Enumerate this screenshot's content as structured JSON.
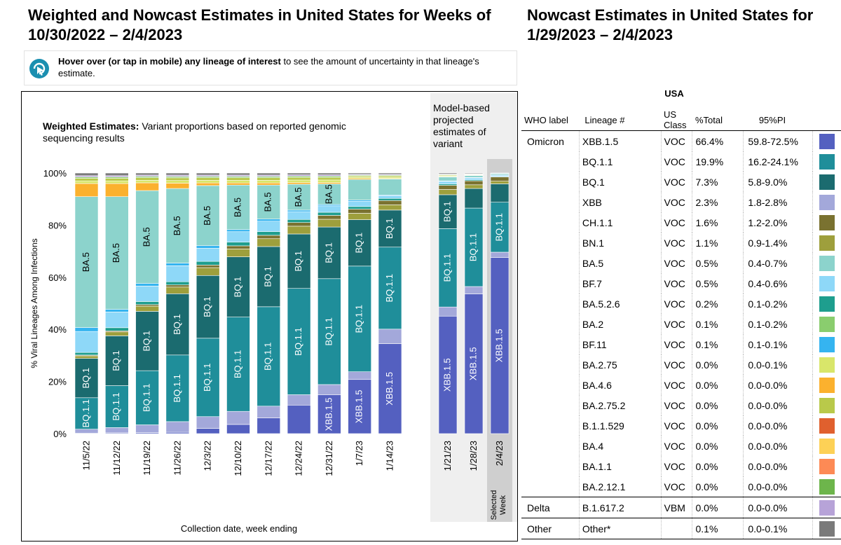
{
  "left_title": "Weighted and Nowcast Estimates in United States for Weeks of 10/30/2022 – 2/4/2023",
  "right_title": "Nowcast Estimates in United States for 1/29/2023 – 2/4/2023",
  "hover": {
    "bold": "Hover over (or tap in mobile) any lineage of interest",
    "rest": " to see the amount of uncertainty in that lineage's estimate."
  },
  "weighted_label_bold": "Weighted Estimates:",
  "weighted_label_rest": " Variant proportions based on reported genomic sequencing results",
  "nowcast_label": [
    "Model-based",
    "projected",
    "estimates of",
    "variant"
  ],
  "selected_week_label": [
    "Selected",
    "Week"
  ],
  "colors": {
    "XBB.1.5": "#5460C0",
    "BQ.1.1": "#1F8E9A",
    "BQ.1": "#1B6B6F",
    "XBB": "#A3A8DA",
    "CH.1.1": "#7A7230",
    "BN.1": "#9E9F3C",
    "BA.5": "#8CD3CC",
    "BF.7": "#8ED8F8",
    "BA.5.2.6": "#1E9E8E",
    "BA.2": "#8ACD6E",
    "BF.11": "#35B4F0",
    "BA.2.75": "#D9E66A",
    "BA.4.6": "#FBB12E",
    "BA.2.75.2": "#B9C94A",
    "B.1.1.529": "#E0602E",
    "BA.4": "#FDD156",
    "BA.1.1": "#FD8A55",
    "BA.2.12.1": "#6DB54B",
    "B.1.617.2": "#B7A3D8",
    "Other*": "#7A7A7A"
  },
  "chart_data": {
    "type": "bar",
    "stacked": true,
    "title": "Weighted and Nowcast Estimates in United States for Weeks of 10/30/2022 – 2/4/2023",
    "xlabel": "Collection date, week ending",
    "ylabel": "% Viral Lineages Among Infections",
    "ylim": [
      0,
      100
    ],
    "yticks": [
      "0%",
      "20%",
      "40%",
      "60%",
      "80%",
      "100%"
    ],
    "categories": [
      "11/5/22",
      "11/12/22",
      "11/19/22",
      "11/26/22",
      "12/3/22",
      "12/10/22",
      "12/17/22",
      "12/24/22",
      "12/31/22",
      "1/7/23",
      "1/14/23",
      "1/21/23",
      "1/28/23",
      "2/4/23"
    ],
    "weighted_count": 11,
    "selected_week": "2/4/23",
    "series": [
      {
        "name": "XBB.1.5",
        "values": [
          0.2,
          0.3,
          0.4,
          0.5,
          2,
          3.5,
          6,
          11,
          15,
          21,
          34,
          45,
          57,
          67
        ]
      },
      {
        "name": "XBB",
        "values": [
          1.5,
          2,
          3,
          4,
          4.5,
          5,
          4.5,
          4,
          4,
          3,
          5.5,
          3.5,
          3,
          2
        ]
      },
      {
        "name": "BQ.1.1",
        "values": [
          12,
          16,
          21,
          25,
          30,
          36,
          38,
          41,
          41,
          41,
          31,
          30,
          32,
          19
        ]
      },
      {
        "name": "BQ.1",
        "values": [
          15,
          19,
          23,
          23,
          24,
          23,
          23,
          21,
          20,
          18,
          14,
          13,
          8,
          7
        ]
      },
      {
        "name": "BN.1",
        "values": [
          1,
          1.5,
          2,
          2.5,
          3,
          3,
          3,
          3,
          3,
          2.5,
          2,
          2,
          1.5,
          1
        ]
      },
      {
        "name": "CH.1.1",
        "values": [
          0.3,
          0.4,
          0.6,
          0.8,
          1,
          1.2,
          1.3,
          1.4,
          1.5,
          1.6,
          1.6,
          1.6,
          1.6,
          1.6
        ]
      },
      {
        "name": "BA.5.2.6",
        "values": [
          1,
          1.2,
          1.2,
          1.2,
          1.4,
          1.4,
          1.4,
          1.2,
          1.2,
          1,
          0.8,
          0.5,
          0.4,
          0.2
        ]
      },
      {
        "name": "BF.7",
        "values": [
          8,
          6,
          6,
          6,
          5,
          4,
          4,
          3,
          2.5,
          2,
          1,
          1,
          0.8,
          0.5
        ]
      },
      {
        "name": "BF.11",
        "values": [
          1.5,
          1,
          1,
          1,
          1,
          0.8,
          0.8,
          0.6,
          0.5,
          0.5,
          0.3,
          0.2,
          0.2,
          0.1
        ]
      },
      {
        "name": "BA.5",
        "values": [
          50,
          43,
          36,
          28,
          23,
          17,
          13,
          10,
          8,
          8,
          6,
          1.5,
          0.8,
          0.5
        ]
      },
      {
        "name": "BA.4.6",
        "values": [
          5,
          5,
          3,
          2,
          1,
          0.8,
          0.8,
          0.6,
          0.5,
          0.4,
          0.2,
          0.1,
          0.1,
          0
        ]
      },
      {
        "name": "BA.2.75",
        "values": [
          1,
          1,
          1,
          1,
          1,
          1,
          1,
          1,
          1,
          0.5,
          0.5,
          0.3,
          0.2,
          0
        ]
      },
      {
        "name": "BA.2.75.2",
        "values": [
          1,
          1,
          1,
          1,
          1,
          1,
          1,
          1,
          1,
          0.5,
          0.5,
          0.3,
          0.2,
          0
        ]
      },
      {
        "name": "BA.2",
        "values": [
          0.5,
          0.5,
          0.5,
          0.5,
          0.5,
          0.5,
          0.5,
          0.5,
          0.5,
          0.3,
          0.3,
          0.2,
          0.1,
          0.1
        ]
      },
      {
        "name": "B.1.617.2",
        "values": [
          0.5,
          0.5,
          0.5,
          0.5,
          0.5,
          0.5,
          0.5,
          0.5,
          0.5,
          0.3,
          0.3,
          0.2,
          0.1,
          0
        ]
      },
      {
        "name": "Other*",
        "values": [
          1,
          1,
          0.8,
          0.8,
          0.8,
          0.8,
          0.8,
          0.7,
          0.7,
          0.5,
          0.5,
          0.4,
          0.3,
          0.1
        ]
      }
    ],
    "bar_labels": [
      [
        "BQ.1.1",
        "BQ.1",
        "BA.5"
      ],
      [
        "BQ.1.1",
        "BQ.1",
        "BA.5"
      ],
      [
        "BQ.1.1",
        "BQ.1",
        "BA.5"
      ],
      [
        "BQ.1.1",
        "BQ.1",
        "BA.5"
      ],
      [
        "BQ.1.1",
        "BQ.1",
        "BA.5"
      ],
      [
        "BQ.1.1",
        "BQ.1",
        "BA.5"
      ],
      [
        "BQ.1.1",
        "BQ.1",
        "BA.5"
      ],
      [
        "BQ.1.1",
        "BQ.1",
        "BA.5"
      ],
      [
        "XBB.1.5",
        "BQ.1.1",
        "BQ.1",
        "BA.5"
      ],
      [
        "XBB.1.5",
        "BQ.1.1",
        "BQ.1"
      ],
      [
        "XBB.1.5",
        "BQ.1.1",
        "BQ.1"
      ],
      [
        "XBB.1.5",
        "BQ.1.1",
        "BQ.1"
      ],
      [
        "XBB.1.5",
        "BQ.1.1",
        "BQ.1"
      ],
      [
        "XBB.1.5",
        "BQ.1.1"
      ]
    ]
  },
  "table": {
    "region": "USA",
    "headers": [
      "WHO label",
      "Lineage #",
      "US Class",
      "%Total",
      "95%PI"
    ],
    "rows": [
      {
        "who": "Omicron",
        "lineage": "XBB.1.5",
        "cls": "VOC",
        "pct": "66.4%",
        "pi": "59.8-72.5%"
      },
      {
        "who": "",
        "lineage": "BQ.1.1",
        "cls": "VOC",
        "pct": "19.9%",
        "pi": "16.2-24.1%"
      },
      {
        "who": "",
        "lineage": "BQ.1",
        "cls": "VOC",
        "pct": "7.3%",
        "pi": "5.8-9.0%"
      },
      {
        "who": "",
        "lineage": "XBB",
        "cls": "VOC",
        "pct": "2.3%",
        "pi": "1.8-2.8%"
      },
      {
        "who": "",
        "lineage": "CH.1.1",
        "cls": "VOC",
        "pct": "1.6%",
        "pi": "1.2-2.0%"
      },
      {
        "who": "",
        "lineage": "BN.1",
        "cls": "VOC",
        "pct": "1.1%",
        "pi": "0.9-1.4%"
      },
      {
        "who": "",
        "lineage": "BA.5",
        "cls": "VOC",
        "pct": "0.5%",
        "pi": "0.4-0.7%"
      },
      {
        "who": "",
        "lineage": "BF.7",
        "cls": "VOC",
        "pct": "0.5%",
        "pi": "0.4-0.6%"
      },
      {
        "who": "",
        "lineage": "BA.5.2.6",
        "cls": "VOC",
        "pct": "0.2%",
        "pi": "0.1-0.2%"
      },
      {
        "who": "",
        "lineage": "BA.2",
        "cls": "VOC",
        "pct": "0.1%",
        "pi": "0.1-0.2%"
      },
      {
        "who": "",
        "lineage": "BF.11",
        "cls": "VOC",
        "pct": "0.1%",
        "pi": "0.1-0.1%"
      },
      {
        "who": "",
        "lineage": "BA.2.75",
        "cls": "VOC",
        "pct": "0.0%",
        "pi": "0.0-0.1%"
      },
      {
        "who": "",
        "lineage": "BA.4.6",
        "cls": "VOC",
        "pct": "0.0%",
        "pi": "0.0-0.0%"
      },
      {
        "who": "",
        "lineage": "BA.2.75.2",
        "cls": "VOC",
        "pct": "0.0%",
        "pi": "0.0-0.0%"
      },
      {
        "who": "",
        "lineage": "B.1.1.529",
        "cls": "VOC",
        "pct": "0.0%",
        "pi": "0.0-0.0%"
      },
      {
        "who": "",
        "lineage": "BA.4",
        "cls": "VOC",
        "pct": "0.0%",
        "pi": "0.0-0.0%"
      },
      {
        "who": "",
        "lineage": "BA.1.1",
        "cls": "VOC",
        "pct": "0.0%",
        "pi": "0.0-0.0%"
      },
      {
        "who": "",
        "lineage": "BA.2.12.1",
        "cls": "VOC",
        "pct": "0.0%",
        "pi": "0.0-0.0%"
      },
      {
        "who": "Delta",
        "lineage": "B.1.617.2",
        "cls": "VBM",
        "pct": "0.0%",
        "pi": "0.0-0.0%"
      },
      {
        "who": "Other",
        "lineage": "Other*",
        "cls": "",
        "pct": "0.1%",
        "pi": "0.0-0.1%"
      }
    ]
  }
}
